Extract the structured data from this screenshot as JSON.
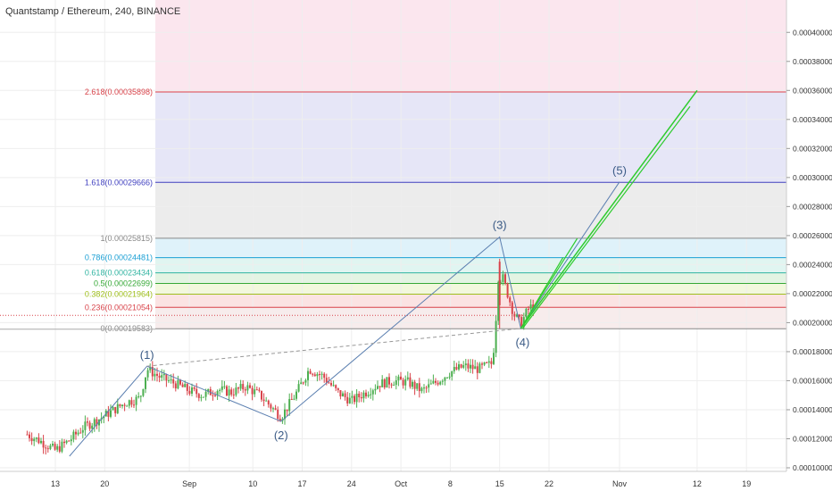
{
  "header": {
    "title": "Quantstamp / Ethereum, 240, BINANCE"
  },
  "colors": {
    "up": "#4caf50",
    "down": "#d8434a",
    "wave_line": "#5b7fb0",
    "projection": "#2ecc2e",
    "dashed": "#999999",
    "dotted_red": "#d8434a"
  },
  "chart_data": {
    "type": "candlestick",
    "title": "Quantstamp / Ethereum, 240, BINANCE",
    "ylim": [
      0.0001,
      0.00041
    ],
    "y_ticks": [
      "0.00040000",
      "0.00038000",
      "0.00036000",
      "0.00034000",
      "0.00032000",
      "0.00030000",
      "0.00028000",
      "0.00026000",
      "0.00024000",
      "0.00022000",
      "0.00020000",
      "0.00018000",
      "0.00016000",
      "0.00014000",
      "0.00012000",
      "0.00010000"
    ],
    "x_ticks": [
      "13",
      "20",
      "Sep",
      "10",
      "17",
      "24",
      "Oct",
      "8",
      "15",
      "22",
      "Nov",
      "12",
      "19"
    ],
    "fib_levels": [
      {
        "label": "2.618(0.00035898)",
        "value": 0.00035898,
        "color": "#d8434a",
        "fill": "#fbe3e3"
      },
      {
        "label": "1.618(0.00029666)",
        "value": 0.00029666,
        "color": "#3f3fbf",
        "fill": "#e6e6f7"
      },
      {
        "label": "1(0.00025815)",
        "value": 0.00025815,
        "color": "#888888",
        "fill": "#ececec"
      },
      {
        "label": "0.786(0.00024481)",
        "value": 0.00024481,
        "color": "#1a9fd4",
        "fill": "#dff2fa"
      },
      {
        "label": "0.618(0.00023434)",
        "value": 0.00023434,
        "color": "#2fb3a0",
        "fill": "#e0f5f1"
      },
      {
        "label": "0.5(0.00022699)",
        "value": 0.00022699,
        "color": "#35a835",
        "fill": "#e3f4e3"
      },
      {
        "label": "0.382(0.00021964)",
        "value": 0.00021964,
        "color": "#9fbf1a",
        "fill": "#f2f8dd"
      },
      {
        "label": "0.236(0.00021054)",
        "value": 0.00021054,
        "color": "#d8434a",
        "fill": "#fbe3e3"
      },
      {
        "label": "0(0.00019583)",
        "value": 0.00019583,
        "color": "#888888",
        "fill": "#f7ecec"
      }
    ],
    "wave_labels": [
      "(1)",
      "(2)",
      "(3)",
      "(4)",
      "(5)"
    ],
    "wave_points": [
      {
        "date": "Aug 26",
        "price": 0.00017
      },
      {
        "date": "Sep 14",
        "price": 0.000132
      },
      {
        "date": "Oct 15",
        "price": 0.000259
      },
      {
        "date": "Oct 18",
        "price": 0.000196
      },
      {
        "date": "Nov 1",
        "price": 0.000297
      }
    ],
    "projection_target": {
      "date": "Nov 12",
      "price": 0.00036
    },
    "price_series": {
      "dates": [
        "Aug 9",
        "Aug 11",
        "Aug 13",
        "Aug 15",
        "Aug 17",
        "Aug 19",
        "Aug 21",
        "Aug 23",
        "Aug 25",
        "Aug 26",
        "Aug 28",
        "Aug 30",
        "Sep 1",
        "Sep 3",
        "Sep 5",
        "Sep 7",
        "Sep 9",
        "Sep 11",
        "Sep 13",
        "Sep 14",
        "Sep 16",
        "Sep 18",
        "Sep 20",
        "Sep 22",
        "Sep 24",
        "Sep 26",
        "Sep 28",
        "Sep 30",
        "Oct 2",
        "Oct 4",
        "Oct 6",
        "Oct 8",
        "Oct 10",
        "Oct 12",
        "Oct 14",
        "Oct 15",
        "Oct 16",
        "Oct 17",
        "Oct 18",
        "Oct 19",
        "Oct 20"
      ],
      "close": [
        0.000123,
        0.000118,
        0.000112,
        0.000119,
        0.000128,
        0.000133,
        0.000139,
        0.000145,
        0.000148,
        0.000168,
        0.000162,
        0.000158,
        0.000153,
        0.00015,
        0.000154,
        0.000152,
        0.000156,
        0.00015,
        0.00014,
        0.000135,
        0.00015,
        0.000168,
        0.000163,
        0.000152,
        0.000146,
        0.000152,
        0.000158,
        0.00016,
        0.000159,
        0.000153,
        0.000159,
        0.000166,
        0.00017,
        0.000168,
        0.000172,
        0.000238,
        0.000222,
        0.000206,
        0.000199,
        0.000209,
        0.000213
      ]
    }
  }
}
